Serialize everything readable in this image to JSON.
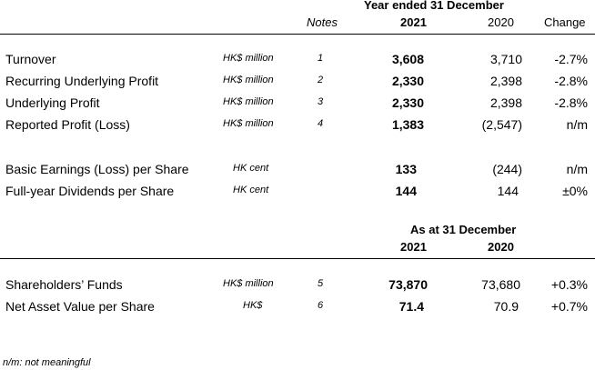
{
  "header": {
    "group_title": "Year ended 31 December",
    "notes_label": "Notes",
    "year_current": "2021",
    "year_prior": "2020",
    "change_label": "Change"
  },
  "section1": {
    "rows": [
      {
        "label": "Turnover",
        "unit": "HK$ million",
        "note": "1",
        "current": "3,608",
        "prior": "3,710",
        "change": "-2.7%"
      },
      {
        "label": "Recurring Underlying Profit",
        "unit": "HK$ million",
        "note": "2",
        "current": "2,330",
        "prior": "2,398",
        "change": "-2.8%"
      },
      {
        "label": "Underlying Profit",
        "unit": "HK$ million",
        "note": "3",
        "current": "2,330",
        "prior": "2,398",
        "change": "-2.8%"
      },
      {
        "label": "Reported Profit (Loss)",
        "unit": "HK$ million",
        "note": "4",
        "current": "1,383",
        "prior": "(2,547)",
        "change": "n/m"
      }
    ]
  },
  "section2": {
    "rows": [
      {
        "label": "Basic Earnings (Loss) per Share",
        "unit": "HK cent",
        "current": "133",
        "prior": "(244)",
        "change": "n/m"
      },
      {
        "label": "Full-year Dividends per Share",
        "unit": "HK cent",
        "current": "144",
        "prior": "144",
        "change": "±0%"
      }
    ]
  },
  "section3": {
    "group_title": "As at 31 December",
    "year_current": "2021",
    "year_prior": "2020",
    "rows": [
      {
        "label": "Shareholders’ Funds",
        "unit": "HK$ million",
        "note": "5",
        "current": "73,870",
        "prior": "73,680",
        "change": "+0.3%"
      },
      {
        "label": "Net Asset Value per Share",
        "unit": "HK$",
        "note": "6",
        "current": "71.4",
        "prior": "70.9",
        "change": "+0.7%"
      }
    ]
  },
  "footnote": "n/m: not meaningful"
}
